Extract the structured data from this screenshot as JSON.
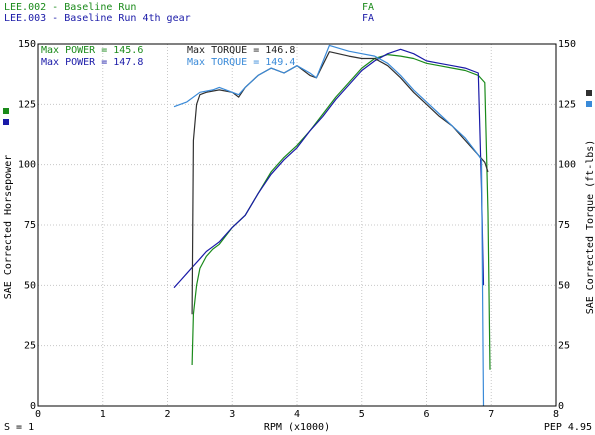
{
  "header": {
    "runs": [
      {
        "label": "LEE.002 - Baseline Run",
        "tag": "FA",
        "color": "#1a8a1a"
      },
      {
        "label": "LEE.003 - Baseline Run 4th gear",
        "tag": "FA",
        "color": "#1a1aa8"
      }
    ]
  },
  "stats": {
    "row1": {
      "power": "Max POWER = 145.6",
      "torque": "Max TORQUE = 146.8"
    },
    "row2": {
      "power": "Max POWER = 147.8",
      "torque": "Max TORQUE = 149.4"
    }
  },
  "footer": {
    "left": "S = 1",
    "right": "PEP 4.95"
  },
  "colors": {
    "hp1": "#1a8a1a",
    "hp2": "#1a1aa8",
    "tq1": "#303030",
    "tq2": "#3a8ad8",
    "grid": "#c8c8c8"
  },
  "chart_data": {
    "type": "line",
    "xlabel": "RPM (x1000)",
    "ylabel_left": "SAE Corrected Horsepower",
    "ylabel_right": "SAE Corrected Torque (ft-lbs)",
    "xlim": [
      0,
      8
    ],
    "ylim": [
      0,
      150
    ],
    "x_ticks": [
      0,
      1,
      2,
      3,
      4,
      5,
      6,
      7,
      8
    ],
    "y_ticks": [
      0,
      25,
      50,
      75,
      100,
      125,
      150
    ],
    "grid": true,
    "series": [
      {
        "name": "LEE.002 - Baseline Run",
        "quantity": "power",
        "color_key": "hp1",
        "x": [
          2.38,
          2.4,
          2.45,
          2.5,
          2.6,
          2.7,
          2.8,
          3.0,
          3.2,
          3.4,
          3.6,
          3.8,
          4.0,
          4.2,
          4.4,
          4.6,
          4.8,
          5.0,
          5.2,
          5.4,
          5.6,
          5.8,
          6.0,
          6.2,
          6.4,
          6.6,
          6.8,
          6.9,
          6.95,
          6.98
        ],
        "y": [
          17,
          38,
          50,
          57,
          62,
          65,
          67,
          74,
          79,
          88,
          97,
          103,
          108,
          114,
          121,
          128,
          134,
          140,
          144,
          145.6,
          145,
          144,
          142,
          141,
          140,
          139,
          137,
          134,
          80,
          15
        ]
      },
      {
        "name": "LEE.003 - Baseline Run 4th gear",
        "quantity": "power",
        "color_key": "hp2",
        "x": [
          2.1,
          2.2,
          2.3,
          2.4,
          2.5,
          2.6,
          2.7,
          2.8,
          3.0,
          3.2,
          3.4,
          3.6,
          3.8,
          4.0,
          4.2,
          4.4,
          4.6,
          4.8,
          5.0,
          5.2,
          5.4,
          5.6,
          5.8,
          6.0,
          6.2,
          6.4,
          6.6,
          6.8,
          6.85,
          6.88
        ],
        "y": [
          49,
          52,
          55,
          58,
          61,
          64,
          66,
          68,
          74,
          79,
          88,
          96,
          102,
          107,
          114,
          120,
          127,
          133,
          139,
          143,
          146,
          147.8,
          146,
          143,
          142,
          141,
          140,
          138,
          90,
          50
        ]
      },
      {
        "name": "LEE.002 - Baseline Run",
        "quantity": "torque",
        "color_key": "tq1",
        "x": [
          2.38,
          2.4,
          2.45,
          2.5,
          2.6,
          2.8,
          3.0,
          3.1,
          3.2,
          3.4,
          3.6,
          3.8,
          4.0,
          4.2,
          4.3,
          4.5,
          4.8,
          5.0,
          5.2,
          5.4,
          5.6,
          5.8,
          6.0,
          6.2,
          6.4,
          6.6,
          6.8,
          6.9,
          6.95
        ],
        "y": [
          38,
          110,
          125,
          129,
          130,
          131,
          130,
          128,
          132,
          137,
          140,
          138,
          141,
          137,
          136,
          146.8,
          145,
          144,
          144,
          141,
          136,
          130,
          125,
          120,
          116,
          110,
          104,
          101,
          97
        ]
      },
      {
        "name": "LEE.003 - Baseline Run 4th gear",
        "quantity": "torque",
        "color_key": "tq2",
        "x": [
          2.1,
          2.3,
          2.5,
          2.7,
          2.8,
          3.0,
          3.1,
          3.2,
          3.4,
          3.6,
          3.8,
          4.0,
          4.2,
          4.3,
          4.5,
          4.8,
          5.0,
          5.2,
          5.4,
          5.6,
          5.8,
          6.0,
          6.2,
          6.4,
          6.6,
          6.8,
          6.85,
          6.88
        ],
        "y": [
          124,
          126,
          130,
          131,
          132,
          130,
          129,
          132,
          137,
          140,
          138,
          141,
          138,
          136,
          149.4,
          147,
          146,
          145,
          142,
          137,
          131,
          126,
          121,
          116,
          111,
          104,
          102,
          0
        ]
      }
    ]
  }
}
